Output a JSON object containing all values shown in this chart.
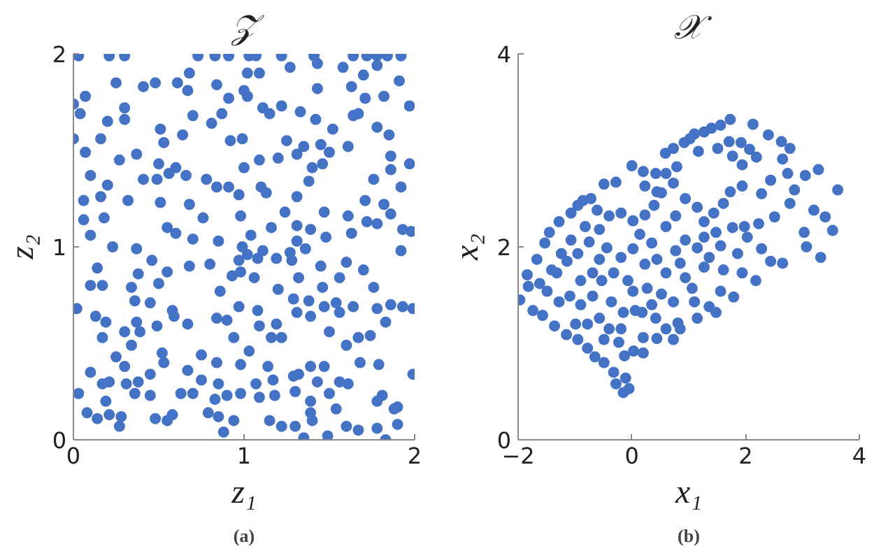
{
  "chart_data": [
    {
      "type": "scatter",
      "title": "𝒵",
      "xlabel": "z₁",
      "ylabel": "z₂",
      "annotations": [
        "(a)"
      ],
      "color": "#4472c4",
      "marker": "circle",
      "grid": false,
      "xlim": [
        0,
        2
      ],
      "ylim": [
        0,
        2
      ],
      "xticks": [
        0,
        1,
        2
      ],
      "yticks": [
        0,
        1,
        2
      ],
      "x": [
        0.03,
        0.21,
        0.3,
        0.73,
        0.83,
        0.91,
        1.03,
        1.07,
        1.22,
        1.41,
        1.64,
        1.72,
        1.78,
        1.84,
        1.92,
        0.68,
        1.02,
        1.09,
        1.27,
        1.43,
        1.58,
        1.7,
        1.78,
        1.91,
        0.25,
        0.41,
        0.48,
        0.61,
        0.67,
        0.84,
        0.91,
        1.0,
        1.02,
        1.43,
        1.63,
        1.71,
        1.82,
        0.0,
        0.07,
        1.97,
        1.22,
        0.04,
        0.2,
        0.3,
        0.3,
        0.7,
        0.81,
        0.87,
        1.11,
        1.15,
        1.33,
        1.42,
        1.52,
        1.64,
        1.67,
        1.78,
        1.85,
        0.0,
        0.51,
        0.64,
        0.16,
        0.53,
        0.92,
        0.99,
        1.25,
        1.35,
        1.45,
        1.61,
        0.07,
        0.27,
        0.37,
        0.5,
        0.6,
        0.41,
        0.49,
        0.56,
        0.66,
        0.78,
        1.0,
        1.09,
        1.2,
        1.31,
        1.4,
        1.46,
        1.5,
        1.86,
        1.86,
        1.97,
        0.1,
        0.2,
        0.84,
        0.91,
        1.1,
        1.38,
        1.76,
        1.92,
        0.06,
        0.16,
        0.32,
        0.51,
        0.68,
        0.97,
        1.13,
        1.31,
        1.71,
        1.82,
        0.06,
        0.18,
        0.76,
        0.98,
        1.24,
        1.47,
        1.61,
        1.72,
        1.86,
        0.55,
        0.6,
        1.16,
        1.31,
        1.39,
        1.78,
        1.93,
        1.98,
        0.1,
        0.7,
        0.85,
        1.04,
        1.48,
        1.63,
        0.23,
        0.37,
        0.99,
        1.02,
        1.11,
        1.19,
        1.27,
        1.31,
        1.36,
        1.92,
        0.97,
        1.08,
        0.46,
        0.55,
        0.38,
        0.14,
        0.68,
        0.8,
        1.6,
        1.7,
        1.28,
        1.06,
        0.93,
        0.98,
        1.45,
        0.1,
        0.17,
        0.34,
        0.5,
        0.86,
        1.2,
        1.32,
        1.46,
        1.56,
        1.76,
        0.36,
        0.45,
        0.02,
        0.97,
        1.08,
        1.29,
        1.38,
        1.47,
        1.54,
        1.64,
        1.78,
        1.86,
        1.93,
        1.99,
        0.58,
        0.13,
        0.19,
        0.84,
        0.9,
        1.31,
        1.39,
        1.56,
        0.59,
        1.09,
        1.19,
        0.67,
        0.49,
        0.37,
        0.3,
        0.17,
        0.39,
        1.16,
        1.22,
        1.67,
        1.83,
        1.74,
        1.5,
        0.34,
        1.6,
        0.94,
        1.03,
        0.25,
        0.52,
        0.75,
        0.84,
        0.98,
        1.14,
        1.29,
        1.39,
        1.47,
        1.68,
        1.79,
        1.99,
        0.1,
        0.3,
        0.45,
        0.53,
        0.67,
        0.75,
        0.85,
        1.07,
        1.17,
        1.32,
        1.43,
        1.56,
        1.61,
        1.81,
        0.17,
        0.21,
        0.31,
        0.38,
        0.03,
        0.19,
        0.36,
        0.45,
        0.63,
        0.7,
        0.83,
        0.9,
        0.98,
        1.09,
        1.18,
        1.3,
        1.39,
        1.5,
        1.78,
        1.9,
        0.08,
        0.14,
        0.21,
        0.28,
        0.48,
        0.55,
        0.58,
        0.79,
        0.85,
        0.88,
        0.94,
        1.15,
        1.22,
        1.3,
        1.35,
        1.39,
        1.4,
        1.49,
        1.54,
        1.6,
        1.67,
        1.78,
        1.83,
        1.9,
        1.88,
        0.27
      ],
      "values": [
        1.99,
        1.99,
        1.99,
        1.99,
        1.99,
        1.99,
        1.99,
        1.99,
        1.99,
        1.99,
        1.99,
        1.99,
        1.99,
        1.99,
        1.99,
        1.9,
        1.9,
        1.9,
        1.93,
        1.95,
        1.93,
        1.89,
        1.94,
        1.86,
        1.85,
        1.83,
        1.85,
        1.85,
        1.81,
        1.84,
        1.77,
        1.81,
        1.78,
        1.82,
        1.83,
        1.77,
        1.78,
        1.74,
        1.78,
        1.73,
        1.73,
        1.69,
        1.65,
        1.72,
        1.66,
        1.68,
        1.64,
        1.69,
        1.72,
        1.69,
        1.7,
        1.66,
        1.61,
        1.68,
        1.69,
        1.62,
        1.58,
        1.56,
        1.61,
        1.58,
        1.56,
        1.54,
        1.55,
        1.56,
        1.55,
        1.52,
        1.53,
        1.52,
        1.49,
        1.45,
        1.48,
        1.43,
        1.41,
        1.35,
        1.35,
        1.38,
        1.37,
        1.35,
        1.41,
        1.45,
        1.46,
        1.48,
        1.41,
        1.43,
        1.49,
        1.47,
        1.4,
        1.43,
        1.37,
        1.32,
        1.31,
        1.31,
        1.31,
        1.34,
        1.35,
        1.31,
        1.24,
        1.26,
        1.24,
        1.23,
        1.22,
        1.27,
        1.28,
        1.26,
        1.24,
        1.22,
        1.14,
        1.15,
        1.15,
        1.16,
        1.18,
        1.18,
        1.16,
        1.13,
        1.17,
        1.1,
        1.07,
        1.1,
        1.11,
        1.09,
        1.12,
        1.09,
        1.08,
        1.06,
        1.04,
        1.03,
        1.06,
        1.05,
        1.07,
        1.0,
        0.99,
        1.0,
        0.96,
        0.98,
        0.94,
        0.97,
        1.03,
        0.99,
        0.98,
        0.93,
        0.94,
        0.93,
        0.87,
        0.86,
        0.89,
        0.9,
        0.91,
        0.92,
        0.88,
        0.93,
        0.84,
        0.85,
        0.87,
        0.9,
        0.8,
        0.8,
        0.79,
        0.81,
        0.77,
        0.78,
        0.84,
        0.79,
        0.84,
        0.79,
        0.72,
        0.71,
        0.68,
        0.69,
        0.67,
        0.73,
        0.72,
        0.69,
        0.71,
        0.69,
        0.68,
        0.7,
        0.69,
        0.68,
        0.67,
        0.64,
        0.61,
        0.63,
        0.62,
        0.66,
        0.64,
        0.66,
        0.64,
        0.59,
        0.6,
        0.6,
        0.59,
        0.61,
        0.56,
        0.53,
        0.56,
        0.53,
        0.53,
        0.53,
        0.61,
        0.54,
        0.56,
        0.49,
        0.49,
        0.53,
        0.46,
        0.43,
        0.45,
        0.44,
        0.4,
        0.39,
        0.38,
        0.33,
        0.38,
        0.38,
        0.4,
        0.39,
        0.34,
        0.35,
        0.38,
        0.34,
        0.4,
        0.36,
        0.31,
        0.29,
        0.29,
        0.31,
        0.34,
        0.3,
        0.3,
        0.29,
        0.23,
        0.29,
        0.3,
        0.29,
        0.3,
        0.24,
        0.2,
        0.24,
        0.23,
        0.24,
        0.24,
        0.21,
        0.23,
        0.24,
        0.22,
        0.23,
        0.25,
        0.2,
        0.24,
        0.2,
        0.17,
        0.14,
        0.11,
        0.13,
        0.12,
        0.11,
        0.1,
        0.13,
        0.14,
        0.12,
        0.04,
        0.1,
        0.1,
        0.07,
        0.07,
        0.01,
        0.14,
        0.1,
        0.02,
        0.16,
        0.07,
        0.05,
        0.06,
        0.0,
        0.08,
        0.16,
        0.07
      ]
    },
    {
      "type": "scatter",
      "title": "𝒳",
      "xlabel": "x₁",
      "ylabel": "x₂",
      "annotations": [
        "(b)"
      ],
      "color": "#4472c4",
      "marker": "circle",
      "grid": false,
      "xlim": [
        -2,
        4
      ],
      "ylim": [
        0,
        4
      ],
      "xticks": [
        -2,
        0,
        2,
        4
      ],
      "yticks": [
        0,
        2,
        4
      ],
      "x": [
        1.73,
        1.56,
        1.4,
        2.13,
        1.27,
        1.1,
        1.02,
        0.92,
        0.73,
        0.59,
        2.4,
        2.63,
        2.78,
        1.71,
        1.92,
        2.07,
        2.19,
        2.65,
        3.28,
        3.62,
        2.74,
        3.05,
        2.86,
        0.0,
        0.2,
        0.42,
        0.6,
        0.79,
        1.17,
        1.51,
        1.77,
        1.94,
        -0.49,
        -0.28,
        -0.72,
        -0.86,
        -1.07,
        -1.28,
        -1.45,
        -1.53,
        -1.67,
        -1.84,
        -1.97,
        -1.74,
        -1.57,
        -1.36,
        -1.15,
        -0.95,
        -0.78,
        -0.65,
        -0.49,
        -0.32,
        -0.28,
        -0.15,
        -0.05,
        -0.11,
        -0.13,
        0.03,
        0.2,
        0.44,
        0.6,
        0.81,
        0.73,
        0.42,
        0.18,
        0.02,
        0.27,
        0.52,
        0.6,
        0.85,
        0.94,
        1.06,
        1.27,
        1.36,
        1.56,
        1.79,
        1.94,
        2.18,
        2.44,
        2.65,
        3.07,
        3.32,
        3.53,
        3.4,
        3.2,
        3.03,
        2.28,
        2.03,
        1.77,
        1.56,
        1.36,
        1.15,
        0.94,
        0.77,
        0.44,
        0.23,
        0.02,
        -0.19,
        -0.32,
        -0.53,
        -0.69,
        -0.9,
        -1.09,
        -1.28,
        -1.49,
        -1.32,
        -1.14,
        -0.95,
        -0.75,
        -0.57,
        -0.4,
        -0.19,
        0.02,
        0.23,
        0.39,
        0.52,
        0.73,
        0.94,
        1.15,
        1.27,
        1.44,
        1.61,
        1.73,
        1.94,
        2.28,
        2.44,
        2.78,
        2.51,
        2.23,
        1.98,
        -0.57,
        -0.4,
        -0.23,
        -0.49,
        -0.78,
        -0.99,
        -0.36,
        -0.15,
        -0.19,
        0.2,
        -0.07,
        0.06,
        0.35,
        0.73,
        0.85,
        1.1,
        1.15,
        1.48,
        1.86,
        1.61,
        1.48,
        1.27,
        -0.69,
        -0.9,
        -1.07,
        -0.82,
        -0.95,
        -0.61,
        -1.24,
        -1.41,
        -1.62,
        -1.82,
        -0.44,
        -0.57,
        0.14,
        0.35,
        0.6,
        0.77,
        0.44,
        0.23
      ],
      "values": [
        3.32,
        3.26,
        3.23,
        3.27,
        3.19,
        3.17,
        3.12,
        3.08,
        3.02,
        2.97,
        3.16,
        3.09,
        3.02,
        3.09,
        3.08,
        3.01,
        2.93,
        2.91,
        2.8,
        2.59,
        2.76,
        2.74,
        2.59,
        2.84,
        2.78,
        2.76,
        2.76,
        2.83,
        2.99,
        3.02,
        2.94,
        2.85,
        2.65,
        2.67,
        2.5,
        2.48,
        2.35,
        2.26,
        2.15,
        2.04,
        1.87,
        1.71,
        1.45,
        1.34,
        1.29,
        1.18,
        1.09,
        1.04,
        0.95,
        0.86,
        0.8,
        0.7,
        0.58,
        0.49,
        0.53,
        0.64,
        0.87,
        0.92,
        1.06,
        1.05,
        1.15,
        1.21,
        1.04,
        1.26,
        1.32,
        1.54,
        1.57,
        1.51,
        1.73,
        1.83,
        1.68,
        1.57,
        1.79,
        1.38,
        1.54,
        1.48,
        1.73,
        1.65,
        1.85,
        1.83,
        2.0,
        1.89,
        2.17,
        2.31,
        2.38,
        2.15,
        1.98,
        2.1,
        2.2,
        2.01,
        1.89,
        1.99,
        2.07,
        1.96,
        1.87,
        1.82,
        1.98,
        1.89,
        1.73,
        1.65,
        1.49,
        1.4,
        1.49,
        1.43,
        1.54,
        1.73,
        1.85,
        1.93,
        2.05,
        2.18,
        2.32,
        2.35,
        2.27,
        2.33,
        2.43,
        2.56,
        2.66,
        2.5,
        2.41,
        2.26,
        2.35,
        2.45,
        2.57,
        2.63,
        2.55,
        2.69,
        2.45,
        2.31,
        2.24,
        2.21,
        1.26,
        1.15,
        1.01,
        1.04,
        1.2,
        1.2,
        1.43,
        1.32,
        1.15,
        0.9,
        1.65,
        1.34,
        1.4,
        1.43,
        1.15,
        1.43,
        1.26,
        1.32,
        1.93,
        1.76,
        2.15,
        2.1,
        1.73,
        1.65,
        2.07,
        2.21,
        2.43,
        2.38,
        1.93,
        1.76,
        1.62,
        1.59,
        1.99,
        1.87,
        2.13,
        2.04,
        2.21,
        2.32,
        2.57,
        2.63
      ]
    }
  ]
}
